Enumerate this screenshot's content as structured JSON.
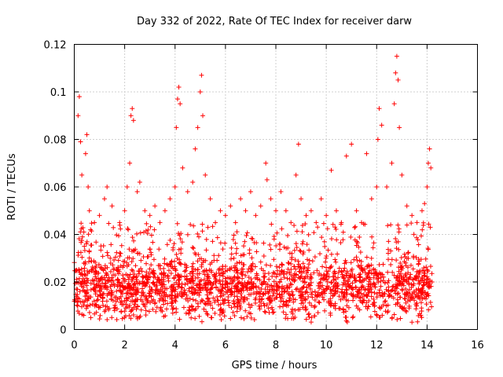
{
  "chart_data": {
    "type": "scatter",
    "title": "Day 332 of 2022, Rate Of TEC Index for receiver darw",
    "xlabel": "GPS time / hours",
    "ylabel": "ROTI / TECUs",
    "xlim": [
      0,
      16
    ],
    "ylim": [
      0,
      0.12
    ],
    "x_ticks": [
      0,
      2,
      4,
      6,
      8,
      10,
      12,
      14,
      16
    ],
    "y_ticks": [
      0,
      0.02,
      0.04,
      0.06,
      0.08,
      0.1,
      0.12
    ],
    "x_tick_labels": [
      "0",
      "2",
      "4",
      "6",
      "8",
      "10",
      "12",
      "14",
      "16"
    ],
    "y_tick_labels": [
      "0",
      "0.02",
      "0.04",
      "0.06",
      "0.08",
      "0.1",
      "0.12"
    ],
    "grid": true,
    "marker": "+",
    "color": "#ff0000",
    "series": [
      {
        "name": "ROTI",
        "points": [
          [
            0.05,
            0.012
          ],
          [
            0.1,
            0.025
          ],
          [
            0.15,
            0.09
          ],
          [
            0.2,
            0.098
          ],
          [
            0.25,
            0.079
          ],
          [
            0.3,
            0.065
          ],
          [
            0.4,
            0.035
          ],
          [
            0.45,
            0.074
          ],
          [
            0.5,
            0.082
          ],
          [
            0.55,
            0.06
          ],
          [
            0.6,
            0.05
          ],
          [
            0.8,
            0.045
          ],
          [
            1.0,
            0.048
          ],
          [
            1.2,
            0.055
          ],
          [
            1.3,
            0.06
          ],
          [
            1.5,
            0.052
          ],
          [
            1.8,
            0.045
          ],
          [
            2.0,
            0.05
          ],
          [
            2.1,
            0.06
          ],
          [
            2.2,
            0.07
          ],
          [
            2.25,
            0.09
          ],
          [
            2.3,
            0.093
          ],
          [
            2.35,
            0.088
          ],
          [
            2.5,
            0.058
          ],
          [
            2.6,
            0.062
          ],
          [
            2.8,
            0.05
          ],
          [
            3.0,
            0.048
          ],
          [
            3.2,
            0.052
          ],
          [
            3.4,
            0.045
          ],
          [
            3.6,
            0.05
          ],
          [
            3.8,
            0.055
          ],
          [
            4.0,
            0.06
          ],
          [
            4.05,
            0.085
          ],
          [
            4.1,
            0.097
          ],
          [
            4.15,
            0.102
          ],
          [
            4.2,
            0.095
          ],
          [
            4.3,
            0.068
          ],
          [
            4.5,
            0.058
          ],
          [
            4.7,
            0.062
          ],
          [
            4.8,
            0.076
          ],
          [
            4.9,
            0.085
          ],
          [
            5.0,
            0.1
          ],
          [
            5.05,
            0.107
          ],
          [
            5.1,
            0.09
          ],
          [
            5.2,
            0.065
          ],
          [
            5.4,
            0.055
          ],
          [
            5.6,
            0.045
          ],
          [
            5.8,
            0.05
          ],
          [
            6.0,
            0.048
          ],
          [
            6.2,
            0.052
          ],
          [
            6.4,
            0.045
          ],
          [
            6.6,
            0.055
          ],
          [
            6.8,
            0.05
          ],
          [
            7.0,
            0.058
          ],
          [
            7.2,
            0.048
          ],
          [
            7.4,
            0.052
          ],
          [
            7.6,
            0.07
          ],
          [
            7.65,
            0.063
          ],
          [
            7.8,
            0.055
          ],
          [
            8.0,
            0.05
          ],
          [
            8.2,
            0.058
          ],
          [
            8.4,
            0.05
          ],
          [
            8.6,
            0.045
          ],
          [
            8.8,
            0.065
          ],
          [
            8.9,
            0.078
          ],
          [
            9.0,
            0.055
          ],
          [
            9.2,
            0.048
          ],
          [
            9.4,
            0.05
          ],
          [
            9.6,
            0.045
          ],
          [
            9.8,
            0.055
          ],
          [
            10.0,
            0.048
          ],
          [
            10.2,
            0.067
          ],
          [
            10.4,
            0.05
          ],
          [
            10.6,
            0.045
          ],
          [
            10.8,
            0.073
          ],
          [
            11.0,
            0.078
          ],
          [
            11.2,
            0.05
          ],
          [
            11.4,
            0.045
          ],
          [
            11.6,
            0.074
          ],
          [
            11.8,
            0.055
          ],
          [
            12.0,
            0.06
          ],
          [
            12.05,
            0.08
          ],
          [
            12.1,
            0.093
          ],
          [
            12.2,
            0.086
          ],
          [
            12.4,
            0.06
          ],
          [
            12.6,
            0.07
          ],
          [
            12.7,
            0.095
          ],
          [
            12.75,
            0.108
          ],
          [
            12.8,
            0.115
          ],
          [
            12.85,
            0.105
          ],
          [
            12.9,
            0.085
          ],
          [
            13.0,
            0.065
          ],
          [
            13.2,
            0.052
          ],
          [
            13.4,
            0.048
          ],
          [
            13.6,
            0.045
          ],
          [
            13.8,
            0.05
          ],
          [
            13.9,
            0.053
          ],
          [
            14.0,
            0.06
          ],
          [
            14.05,
            0.07
          ],
          [
            14.1,
            0.076
          ],
          [
            14.15,
            0.068
          ],
          [
            14.2,
            0.02
          ]
        ]
      }
    ],
    "background_band": {
      "x_range": [
        0.0,
        14.2
      ],
      "median": 0.018,
      "spread_low": 0.004,
      "spread_high": 0.045
    }
  }
}
